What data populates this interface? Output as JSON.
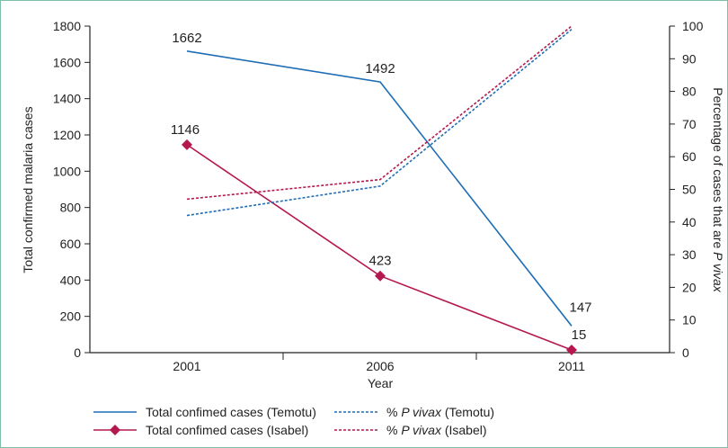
{
  "chart_data": {
    "type": "line",
    "categories": [
      "2001",
      "2006",
      "2011"
    ],
    "x": [
      2001,
      2006,
      2011
    ],
    "xlabel": "Year",
    "ylabel_left": "Total confirmed malaria cases",
    "ylabel_right_prefix": "Percentage of cases that are ",
    "ylabel_right_italic": "P vivax",
    "ylim_left": [
      0,
      1800
    ],
    "ylim_right": [
      0,
      100
    ],
    "yticks_left": [
      0,
      200,
      400,
      600,
      800,
      1000,
      1200,
      1400,
      1600,
      1800
    ],
    "yticks_right": [
      0,
      10,
      20,
      30,
      40,
      50,
      60,
      70,
      80,
      90,
      100
    ],
    "series": [
      {
        "name": "Total confimed cases (Temotu)",
        "axis": "left",
        "style": "solid",
        "color": "#1f6db5",
        "marker": "none",
        "values": [
          1662,
          1492,
          147
        ],
        "labels": [
          "1662",
          "1492",
          "147"
        ]
      },
      {
        "name": "Total confimed cases (Isabel)",
        "axis": "left",
        "style": "solid",
        "color": "#b5174f",
        "marker": "diamond",
        "values": [
          1146,
          423,
          15
        ],
        "labels": [
          "1146",
          "423",
          "15"
        ]
      },
      {
        "name_prefix": "% ",
        "name_italic": "P vivax",
        "name_suffix": " (Temotu)",
        "axis": "right",
        "style": "dashed",
        "color": "#1f6db5",
        "marker": "none",
        "values": [
          42,
          51,
          99
        ]
      },
      {
        "name_prefix": "% ",
        "name_italic": "P vivax",
        "name_suffix": " (Isabel)",
        "axis": "right",
        "style": "dashed",
        "color": "#b5174f",
        "marker": "none",
        "values": [
          47,
          53,
          100
        ]
      }
    ],
    "grid": false,
    "legend_position": "bottom"
  },
  "legend": {
    "temotu_cases": "Total confimed cases (Temotu)",
    "isabel_cases": "Total confimed cases (Isabel)",
    "vivax_prefix": "% ",
    "vivax_italic": "P vivax",
    "vivax_temotu_suffix": " (Temotu)",
    "vivax_isabel_suffix": " (Isabel)"
  }
}
